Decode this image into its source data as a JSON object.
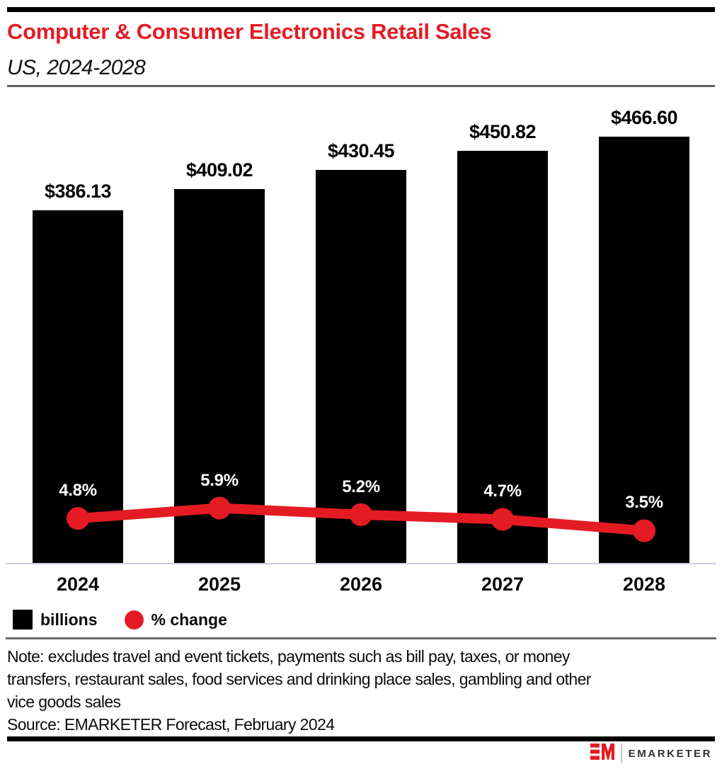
{
  "header": {
    "title": "Computer & Consumer Electronics Retail Sales",
    "subtitle": "US, 2024-2028"
  },
  "chart_data": {
    "type": "bar",
    "title": "Computer & Consumer Electronics Retail Sales",
    "subtitle": "US, 2024-2028",
    "categories": [
      "2024",
      "2025",
      "2026",
      "2027",
      "2028"
    ],
    "series": [
      {
        "name": "billions",
        "type": "bar",
        "color": "#000000",
        "values": [
          386.13,
          409.02,
          430.45,
          450.82,
          466.6
        ],
        "labels": [
          "$386.13",
          "$409.02",
          "$430.45",
          "$450.82",
          "$466.60"
        ]
      },
      {
        "name": "% change",
        "type": "line",
        "color": "#e51b24",
        "values": [
          4.8,
          5.9,
          5.2,
          4.7,
          3.5
        ],
        "labels": [
          "4.8%",
          "5.9%",
          "5.2%",
          "4.7%",
          "3.5%"
        ]
      }
    ],
    "xlabel": "",
    "ylabel": "",
    "grid": false,
    "legend_position": "bottom"
  },
  "legend": {
    "items": [
      {
        "label": "billions",
        "swatch": "square",
        "color": "#000000"
      },
      {
        "label": "% change",
        "swatch": "circle",
        "color": "#e51b24"
      }
    ]
  },
  "note": {
    "lines": [
      "Note: excludes travel and event tickets, payments such as bill pay, taxes, or money",
      "transfers, restaurant sales, food services and drinking place sales, gambling and other",
      "vice goods sales"
    ]
  },
  "source": {
    "text": "Source: EMARKETER Forecast, February 2024"
  },
  "footer": {
    "brand": "EMARKETER",
    "logo": "emarketer-em-logo"
  },
  "colors": {
    "accent_red": "#e51b24",
    "bar_black": "#000000",
    "axis_line": "#c9d0de",
    "divider_gray": "#6a6a6a"
  }
}
